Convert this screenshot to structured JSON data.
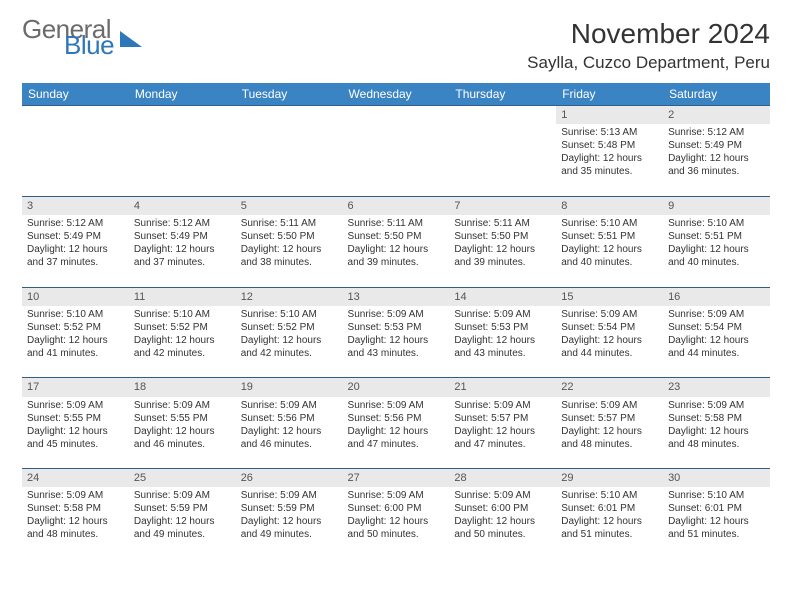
{
  "logo": {
    "text1": "General",
    "text2": "Blue"
  },
  "title": "November 2024",
  "location": "Saylla, Cuzco Department, Peru",
  "weekdays": [
    "Sunday",
    "Monday",
    "Tuesday",
    "Wednesday",
    "Thursday",
    "Friday",
    "Saturday"
  ],
  "colors": {
    "header_bg": "#3b84c4",
    "header_text": "#ffffff",
    "daynum_bg": "#e9e9e9",
    "border": "#2e5f8a",
    "logo_gray": "#6b6b6b",
    "logo_blue": "#2e77b8"
  },
  "weeks": [
    [
      {
        "n": "",
        "blank": true
      },
      {
        "n": "",
        "blank": true
      },
      {
        "n": "",
        "blank": true
      },
      {
        "n": "",
        "blank": true
      },
      {
        "n": "",
        "blank": true
      },
      {
        "n": "1",
        "sunrise": "Sunrise: 5:13 AM",
        "sunset": "Sunset: 5:48 PM",
        "daylight": "Daylight: 12 hours and 35 minutes."
      },
      {
        "n": "2",
        "sunrise": "Sunrise: 5:12 AM",
        "sunset": "Sunset: 5:49 PM",
        "daylight": "Daylight: 12 hours and 36 minutes."
      }
    ],
    [
      {
        "n": "3",
        "sunrise": "Sunrise: 5:12 AM",
        "sunset": "Sunset: 5:49 PM",
        "daylight": "Daylight: 12 hours and 37 minutes."
      },
      {
        "n": "4",
        "sunrise": "Sunrise: 5:12 AM",
        "sunset": "Sunset: 5:49 PM",
        "daylight": "Daylight: 12 hours and 37 minutes."
      },
      {
        "n": "5",
        "sunrise": "Sunrise: 5:11 AM",
        "sunset": "Sunset: 5:50 PM",
        "daylight": "Daylight: 12 hours and 38 minutes."
      },
      {
        "n": "6",
        "sunrise": "Sunrise: 5:11 AM",
        "sunset": "Sunset: 5:50 PM",
        "daylight": "Daylight: 12 hours and 39 minutes."
      },
      {
        "n": "7",
        "sunrise": "Sunrise: 5:11 AM",
        "sunset": "Sunset: 5:50 PM",
        "daylight": "Daylight: 12 hours and 39 minutes."
      },
      {
        "n": "8",
        "sunrise": "Sunrise: 5:10 AM",
        "sunset": "Sunset: 5:51 PM",
        "daylight": "Daylight: 12 hours and 40 minutes."
      },
      {
        "n": "9",
        "sunrise": "Sunrise: 5:10 AM",
        "sunset": "Sunset: 5:51 PM",
        "daylight": "Daylight: 12 hours and 40 minutes."
      }
    ],
    [
      {
        "n": "10",
        "sunrise": "Sunrise: 5:10 AM",
        "sunset": "Sunset: 5:52 PM",
        "daylight": "Daylight: 12 hours and 41 minutes."
      },
      {
        "n": "11",
        "sunrise": "Sunrise: 5:10 AM",
        "sunset": "Sunset: 5:52 PM",
        "daylight": "Daylight: 12 hours and 42 minutes."
      },
      {
        "n": "12",
        "sunrise": "Sunrise: 5:10 AM",
        "sunset": "Sunset: 5:52 PM",
        "daylight": "Daylight: 12 hours and 42 minutes."
      },
      {
        "n": "13",
        "sunrise": "Sunrise: 5:09 AM",
        "sunset": "Sunset: 5:53 PM",
        "daylight": "Daylight: 12 hours and 43 minutes."
      },
      {
        "n": "14",
        "sunrise": "Sunrise: 5:09 AM",
        "sunset": "Sunset: 5:53 PM",
        "daylight": "Daylight: 12 hours and 43 minutes."
      },
      {
        "n": "15",
        "sunrise": "Sunrise: 5:09 AM",
        "sunset": "Sunset: 5:54 PM",
        "daylight": "Daylight: 12 hours and 44 minutes."
      },
      {
        "n": "16",
        "sunrise": "Sunrise: 5:09 AM",
        "sunset": "Sunset: 5:54 PM",
        "daylight": "Daylight: 12 hours and 44 minutes."
      }
    ],
    [
      {
        "n": "17",
        "sunrise": "Sunrise: 5:09 AM",
        "sunset": "Sunset: 5:55 PM",
        "daylight": "Daylight: 12 hours and 45 minutes."
      },
      {
        "n": "18",
        "sunrise": "Sunrise: 5:09 AM",
        "sunset": "Sunset: 5:55 PM",
        "daylight": "Daylight: 12 hours and 46 minutes."
      },
      {
        "n": "19",
        "sunrise": "Sunrise: 5:09 AM",
        "sunset": "Sunset: 5:56 PM",
        "daylight": "Daylight: 12 hours and 46 minutes."
      },
      {
        "n": "20",
        "sunrise": "Sunrise: 5:09 AM",
        "sunset": "Sunset: 5:56 PM",
        "daylight": "Daylight: 12 hours and 47 minutes."
      },
      {
        "n": "21",
        "sunrise": "Sunrise: 5:09 AM",
        "sunset": "Sunset: 5:57 PM",
        "daylight": "Daylight: 12 hours and 47 minutes."
      },
      {
        "n": "22",
        "sunrise": "Sunrise: 5:09 AM",
        "sunset": "Sunset: 5:57 PM",
        "daylight": "Daylight: 12 hours and 48 minutes."
      },
      {
        "n": "23",
        "sunrise": "Sunrise: 5:09 AM",
        "sunset": "Sunset: 5:58 PM",
        "daylight": "Daylight: 12 hours and 48 minutes."
      }
    ],
    [
      {
        "n": "24",
        "sunrise": "Sunrise: 5:09 AM",
        "sunset": "Sunset: 5:58 PM",
        "daylight": "Daylight: 12 hours and 48 minutes."
      },
      {
        "n": "25",
        "sunrise": "Sunrise: 5:09 AM",
        "sunset": "Sunset: 5:59 PM",
        "daylight": "Daylight: 12 hours and 49 minutes."
      },
      {
        "n": "26",
        "sunrise": "Sunrise: 5:09 AM",
        "sunset": "Sunset: 5:59 PM",
        "daylight": "Daylight: 12 hours and 49 minutes."
      },
      {
        "n": "27",
        "sunrise": "Sunrise: 5:09 AM",
        "sunset": "Sunset: 6:00 PM",
        "daylight": "Daylight: 12 hours and 50 minutes."
      },
      {
        "n": "28",
        "sunrise": "Sunrise: 5:09 AM",
        "sunset": "Sunset: 6:00 PM",
        "daylight": "Daylight: 12 hours and 50 minutes."
      },
      {
        "n": "29",
        "sunrise": "Sunrise: 5:10 AM",
        "sunset": "Sunset: 6:01 PM",
        "daylight": "Daylight: 12 hours and 51 minutes."
      },
      {
        "n": "30",
        "sunrise": "Sunrise: 5:10 AM",
        "sunset": "Sunset: 6:01 PM",
        "daylight": "Daylight: 12 hours and 51 minutes."
      }
    ]
  ]
}
